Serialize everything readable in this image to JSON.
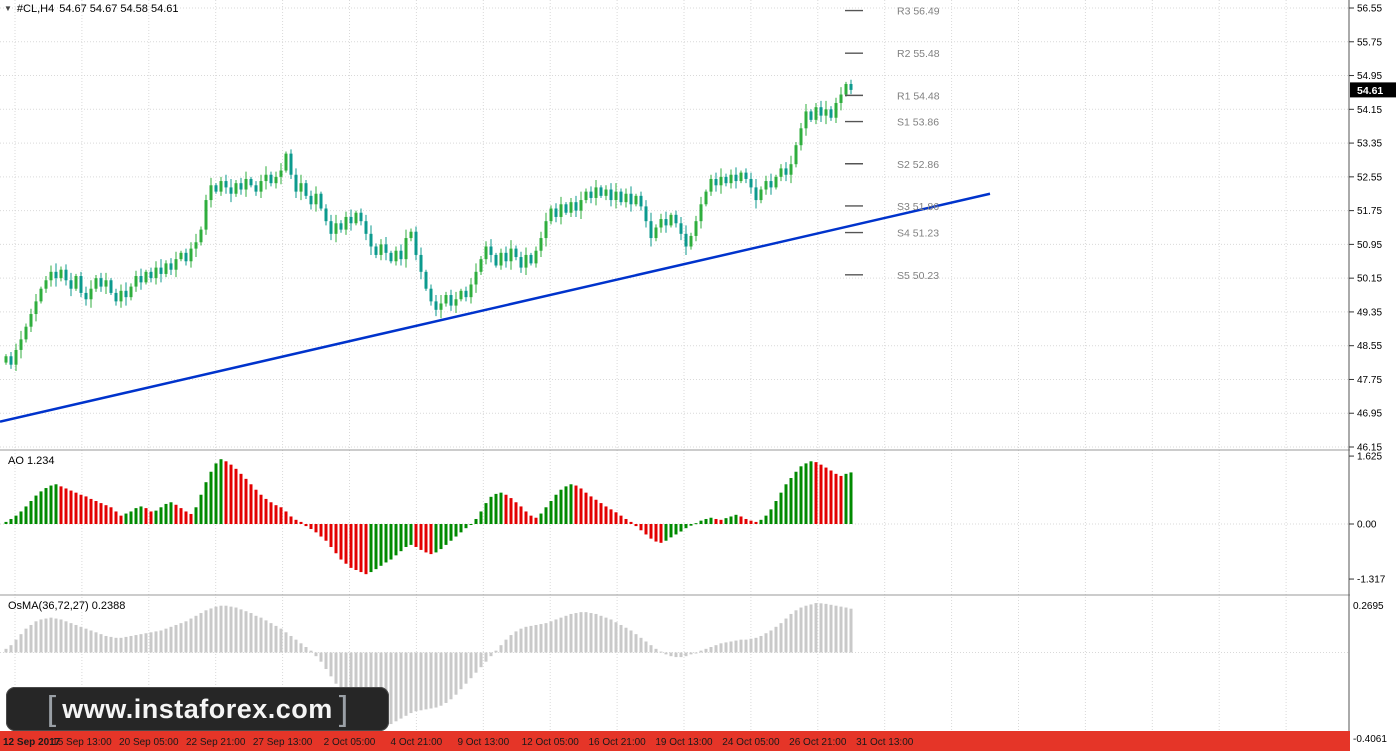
{
  "header": {
    "symbol": "#CL,H4",
    "ohlc": "54.67 54.67 54.58 54.61"
  },
  "watermark": {
    "left_bracket": "[",
    "text": "www.instaforex.com",
    "right_bracket": "]"
  },
  "colors": {
    "background": "#ffffff",
    "grid": "#d9d9d9",
    "separator": "#9a9a9a",
    "axis_line": "#555555",
    "candle_up": "#2fae3e",
    "candle_down": "#0c9a8e",
    "trendline": "#0033cc",
    "ao_up": "#008a00",
    "ao_down": "#e30000",
    "osma_bar": "#c9c9c9",
    "timebar": "#e53528",
    "timebar_text": "#1a1a1a",
    "badge_bg": "#000000",
    "badge_text": "#ffffff",
    "pivot_text": "#808080"
  },
  "price_axis": {
    "ticks": [
      "56.55",
      "55.75",
      "54.95",
      "54.15",
      "53.35",
      "52.55",
      "51.75",
      "50.95",
      "50.15",
      "49.35",
      "48.55",
      "47.75",
      "46.95",
      "46.15"
    ],
    "current_price": "54.61"
  },
  "pivots": [
    {
      "label": "R3 56.49",
      "price": 56.49
    },
    {
      "label": "R2 55.48",
      "price": 55.48
    },
    {
      "label": "R1 54.48",
      "price": 54.48
    },
    {
      "label": "S1 53.86",
      "price": 53.86
    },
    {
      "label": "S2 52.86",
      "price": 52.86
    },
    {
      "label": "S3 51.86",
      "price": 51.86
    },
    {
      "label": "S4 51.23",
      "price": 51.23
    },
    {
      "label": "S5 50.23",
      "price": 50.23
    }
  ],
  "time_axis": {
    "labels": [
      "12 Sep 2017",
      "15 Sep 13:00",
      "20 Sep 05:00",
      "22 Sep 21:00",
      "27 Sep 13:00",
      "2 Oct 05:00",
      "4 Oct 21:00",
      "9 Oct 13:00",
      "12 Oct 05:00",
      "16 Oct 21:00",
      "19 Oct 13:00",
      "24 Oct 05:00",
      "26 Oct 21:00",
      "31 Oct 13:00"
    ]
  },
  "chart_data": [
    {
      "type": "candlestick",
      "title": "#CL,H4",
      "ylim": [
        46.15,
        56.55
      ],
      "last_price": 54.61,
      "trendline": {
        "start_price": 46.75,
        "end_price": 52.15
      },
      "closes": [
        48.3,
        48.1,
        48.45,
        48.7,
        49.0,
        49.3,
        49.6,
        49.9,
        50.1,
        50.3,
        50.15,
        50.35,
        50.1,
        49.9,
        50.2,
        49.8,
        49.65,
        49.9,
        50.15,
        49.95,
        50.1,
        49.8,
        49.6,
        49.85,
        49.7,
        49.95,
        50.2,
        50.05,
        50.3,
        50.15,
        50.4,
        50.25,
        50.5,
        50.35,
        50.6,
        50.75,
        50.55,
        50.85,
        51.0,
        51.3,
        52.0,
        52.35,
        52.2,
        52.45,
        52.3,
        52.15,
        52.4,
        52.25,
        52.5,
        52.35,
        52.2,
        52.45,
        52.6,
        52.4,
        52.55,
        52.7,
        53.1,
        52.6,
        52.2,
        52.4,
        52.1,
        51.9,
        52.15,
        51.8,
        51.5,
        51.2,
        51.45,
        51.3,
        51.6,
        51.45,
        51.7,
        51.5,
        51.2,
        50.9,
        50.7,
        50.95,
        50.75,
        50.55,
        50.8,
        50.6,
        51.1,
        51.25,
        50.7,
        50.3,
        49.9,
        49.6,
        49.4,
        49.55,
        49.75,
        49.5,
        49.65,
        49.85,
        49.7,
        50.0,
        50.3,
        50.6,
        50.9,
        50.7,
        50.45,
        50.75,
        50.55,
        50.85,
        50.65,
        50.4,
        50.7,
        50.5,
        50.8,
        51.1,
        51.5,
        51.8,
        51.6,
        51.9,
        51.7,
        51.95,
        51.75,
        52.0,
        52.2,
        52.05,
        52.3,
        52.1,
        52.25,
        52.0,
        52.2,
        51.95,
        52.15,
        51.9,
        52.1,
        51.85,
        51.5,
        51.1,
        51.35,
        51.55,
        51.4,
        51.65,
        51.45,
        51.2,
        50.9,
        51.15,
        51.5,
        51.9,
        52.2,
        52.5,
        52.35,
        52.55,
        52.4,
        52.6,
        52.45,
        52.65,
        52.5,
        52.3,
        52.0,
        52.25,
        52.45,
        52.3,
        52.55,
        52.75,
        52.6,
        52.85,
        53.3,
        53.7,
        54.1,
        53.9,
        54.2,
        54.0,
        54.15,
        53.95,
        54.3,
        54.5,
        54.75,
        54.61
      ]
    },
    {
      "type": "bar",
      "name": "AO",
      "value_label": "AO 1.234",
      "current_value": 1.234,
      "ylim": [
        -1.317,
        1.625
      ],
      "axis_labels": [
        "1.625",
        "0.00",
        "-1.317"
      ],
      "values": [
        0.05,
        0.12,
        0.2,
        0.3,
        0.42,
        0.55,
        0.68,
        0.78,
        0.86,
        0.92,
        0.95,
        0.9,
        0.85,
        0.8,
        0.75,
        0.7,
        0.66,
        0.6,
        0.55,
        0.5,
        0.45,
        0.4,
        0.3,
        0.2,
        0.25,
        0.3,
        0.38,
        0.42,
        0.38,
        0.3,
        0.32,
        0.4,
        0.48,
        0.52,
        0.46,
        0.38,
        0.3,
        0.24,
        0.4,
        0.7,
        1.0,
        1.25,
        1.45,
        1.55,
        1.5,
        1.42,
        1.32,
        1.2,
        1.08,
        0.95,
        0.82,
        0.7,
        0.6,
        0.52,
        0.45,
        0.4,
        0.3,
        0.18,
        0.1,
        0.05,
        -0.05,
        -0.12,
        -0.2,
        -0.3,
        -0.4,
        -0.55,
        -0.7,
        -0.85,
        -0.95,
        -1.05,
        -1.1,
        -1.15,
        -1.2,
        -1.15,
        -1.08,
        -1.0,
        -0.92,
        -0.85,
        -0.75,
        -0.65,
        -0.55,
        -0.5,
        -0.55,
        -0.62,
        -0.68,
        -0.72,
        -0.68,
        -0.6,
        -0.5,
        -0.4,
        -0.3,
        -0.2,
        -0.1,
        0.0,
        0.12,
        0.3,
        0.5,
        0.65,
        0.72,
        0.75,
        0.7,
        0.62,
        0.52,
        0.42,
        0.3,
        0.2,
        0.15,
        0.25,
        0.4,
        0.55,
        0.7,
        0.82,
        0.9,
        0.95,
        0.92,
        0.85,
        0.75,
        0.66,
        0.58,
        0.5,
        0.42,
        0.35,
        0.28,
        0.2,
        0.12,
        0.05,
        -0.05,
        -0.15,
        -0.25,
        -0.35,
        -0.42,
        -0.45,
        -0.4,
        -0.32,
        -0.25,
        -0.18,
        -0.1,
        -0.04,
        0.02,
        0.08,
        0.12,
        0.15,
        0.12,
        0.1,
        0.14,
        0.18,
        0.22,
        0.18,
        0.12,
        0.08,
        0.05,
        0.1,
        0.2,
        0.35,
        0.55,
        0.75,
        0.95,
        1.1,
        1.25,
        1.38,
        1.45,
        1.5,
        1.48,
        1.42,
        1.35,
        1.28,
        1.2,
        1.15,
        1.2,
        1.234
      ]
    },
    {
      "type": "bar",
      "name": "OsMA",
      "value_label": "OsMA(36,72,27) 0.2388",
      "current_value": 0.2388,
      "ylim": [
        -0.4061,
        0.2695
      ],
      "axis_labels": [
        "0.2695",
        "-0.4061"
      ],
      "values": [
        0.02,
        0.04,
        0.07,
        0.1,
        0.13,
        0.15,
        0.17,
        0.18,
        0.185,
        0.19,
        0.185,
        0.18,
        0.17,
        0.16,
        0.15,
        0.14,
        0.13,
        0.12,
        0.11,
        0.1,
        0.09,
        0.085,
        0.08,
        0.08,
        0.085,
        0.09,
        0.095,
        0.1,
        0.105,
        0.11,
        0.115,
        0.12,
        0.13,
        0.14,
        0.15,
        0.16,
        0.17,
        0.185,
        0.2,
        0.215,
        0.23,
        0.24,
        0.25,
        0.255,
        0.255,
        0.25,
        0.245,
        0.235,
        0.225,
        0.215,
        0.2,
        0.19,
        0.175,
        0.16,
        0.145,
        0.13,
        0.11,
        0.09,
        0.07,
        0.05,
        0.03,
        0.01,
        -0.02,
        -0.05,
        -0.09,
        -0.13,
        -0.17,
        -0.21,
        -0.25,
        -0.28,
        -0.31,
        -0.34,
        -0.365,
        -0.385,
        -0.4,
        -0.405,
        -0.4,
        -0.39,
        -0.375,
        -0.36,
        -0.345,
        -0.33,
        -0.32,
        -0.315,
        -0.31,
        -0.305,
        -0.3,
        -0.29,
        -0.275,
        -0.255,
        -0.23,
        -0.2,
        -0.17,
        -0.14,
        -0.11,
        -0.08,
        -0.05,
        -0.02,
        0.01,
        0.04,
        0.07,
        0.095,
        0.115,
        0.13,
        0.14,
        0.145,
        0.15,
        0.155,
        0.16,
        0.17,
        0.18,
        0.19,
        0.2,
        0.21,
        0.215,
        0.22,
        0.22,
        0.215,
        0.21,
        0.2,
        0.19,
        0.18,
        0.165,
        0.15,
        0.135,
        0.12,
        0.1,
        0.08,
        0.06,
        0.04,
        0.02,
        0.005,
        -0.01,
        -0.02,
        -0.025,
        -0.025,
        -0.02,
        -0.01,
        0.0,
        0.01,
        0.02,
        0.03,
        0.04,
        0.05,
        0.055,
        0.06,
        0.065,
        0.07,
        0.07,
        0.075,
        0.08,
        0.09,
        0.105,
        0.12,
        0.14,
        0.16,
        0.185,
        0.21,
        0.23,
        0.245,
        0.255,
        0.262,
        0.2695,
        0.268,
        0.265,
        0.26,
        0.255,
        0.25,
        0.245,
        0.2388
      ]
    }
  ]
}
